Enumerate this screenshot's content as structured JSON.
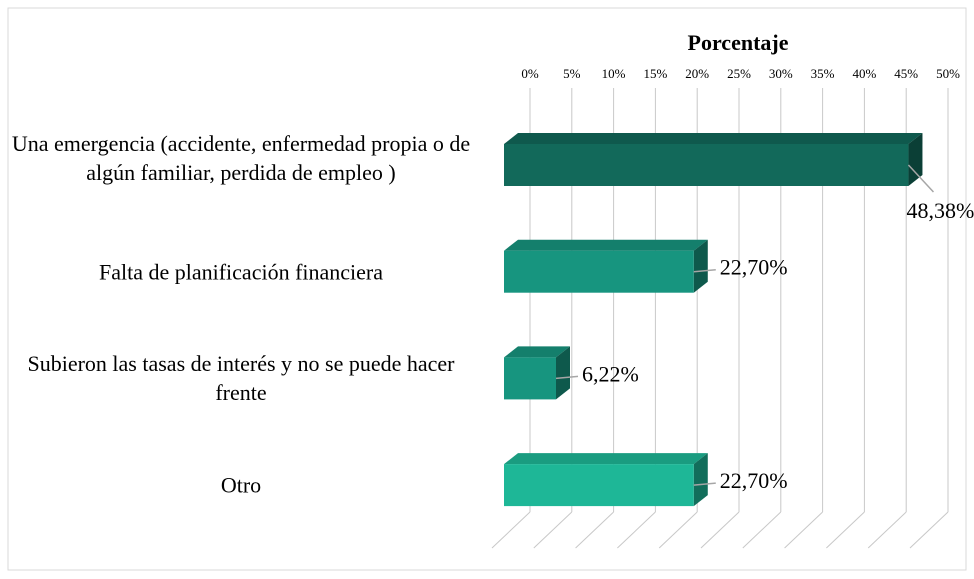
{
  "chart_data": {
    "type": "bar3d_horizontal",
    "title": "Porcentaje",
    "categories": [
      "Una emergencia (accidente, enfermedad propia o de algún familiar, perdida de empleo )",
      "Falta de planificación financiera",
      "Subieron las tasas de interés y no se puede hacer frente",
      "Otro"
    ],
    "values": [
      48.38,
      22.7,
      6.22,
      22.7
    ],
    "value_labels": [
      "48,38%",
      "22,70%",
      "6,22%",
      "22,70%"
    ],
    "colors": [
      "#12695a",
      "#17957f",
      "#17957f",
      "#1eb797"
    ],
    "xlim": [
      0,
      50
    ],
    "xticks": [
      {
        "value": 0,
        "label": "0%"
      },
      {
        "value": 5,
        "label": "5%"
      },
      {
        "value": 10,
        "label": "10%"
      },
      {
        "value": 15,
        "label": "15%"
      },
      {
        "value": 20,
        "label": "20%"
      },
      {
        "value": 25,
        "label": "25%"
      },
      {
        "value": 30,
        "label": "30%"
      },
      {
        "value": 35,
        "label": "35%"
      },
      {
        "value": 40,
        "label": "40%"
      },
      {
        "value": 45,
        "label": "45%"
      },
      {
        "value": 50,
        "label": "50%"
      }
    ],
    "grid": true
  }
}
